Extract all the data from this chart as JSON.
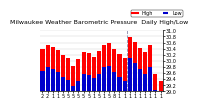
{
  "title": "Milwaukee Weather Barometric Pressure",
  "subtitle": "Daily High/Low",
  "high_color": "#ff0000",
  "low_color": "#0000cc",
  "ylim_min": 29.0,
  "ylim_max": 31.0,
  "yticks": [
    29.0,
    29.2,
    29.4,
    29.6,
    29.8,
    30.0,
    30.2,
    30.4,
    30.6,
    30.8,
    31.0
  ],
  "divider_index": 17,
  "highs": [
    30.38,
    30.52,
    30.45,
    30.35,
    30.18,
    30.08,
    29.82,
    30.05,
    30.28,
    30.25,
    30.12,
    30.32,
    30.52,
    30.58,
    30.38,
    30.22,
    30.08,
    30.78,
    30.62,
    30.42,
    30.28,
    30.52,
    29.55,
    29.35
  ],
  "lows": [
    29.68,
    29.78,
    29.72,
    29.62,
    29.48,
    29.38,
    29.18,
    29.32,
    29.58,
    29.52,
    29.42,
    29.58,
    29.78,
    29.82,
    29.62,
    29.48,
    29.32,
    30.08,
    29.92,
    29.72,
    29.58,
    29.78,
    29.05,
    28.98
  ],
  "xlabels": [
    "2",
    "2",
    "1",
    "1",
    "5",
    "5",
    "5",
    "5",
    "5",
    "5",
    "1",
    "5",
    "1",
    "5",
    "8",
    "1",
    "1",
    "1",
    "1",
    "1",
    "1",
    "1",
    "1",
    "1"
  ],
  "background_color": "#ffffff",
  "grid_color": "#cccccc",
  "title_fontsize": 4.5,
  "tick_fontsize": 3.5,
  "legend_fontsize": 3.5
}
